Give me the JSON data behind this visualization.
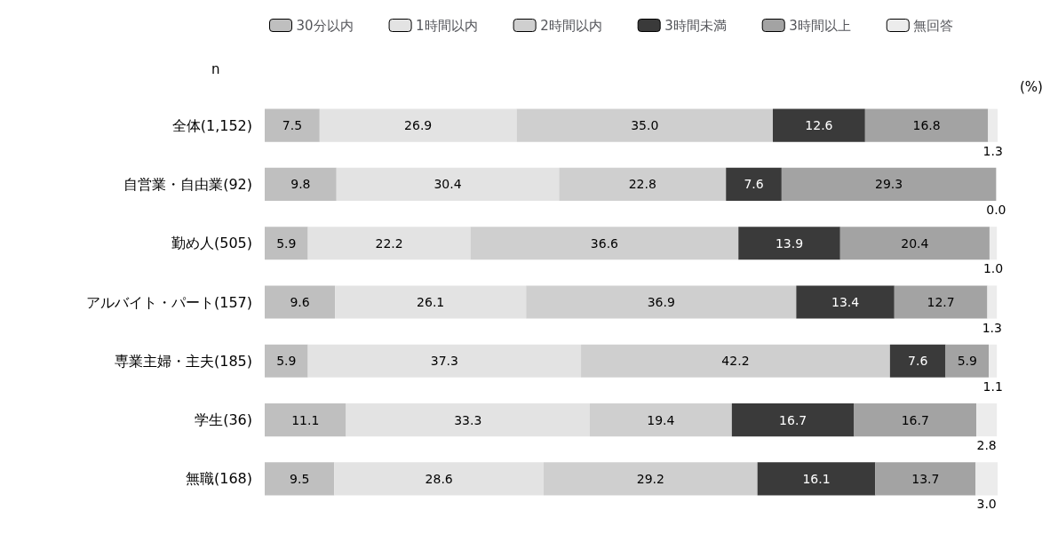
{
  "chart_data": {
    "type": "bar",
    "orientation": "horizontal",
    "stacked": true,
    "data_labels": true,
    "legend": "top",
    "categories": [
      "全体(1,152)",
      "自営業・自由業(92)",
      "勤め人(505)",
      "アルバイト・パート(157)",
      "専業主婦・主夫(185)",
      "学生(36)",
      "無職(168)"
    ],
    "series": [
      {
        "name": "30分以内",
        "color": "#bfbfbf",
        "values": [
          7.5,
          9.8,
          5.9,
          9.6,
          5.9,
          11.1,
          9.5
        ],
        "value_labels": [
          "7.5",
          "9.8",
          "5.9",
          "9.6",
          "5.9",
          "11.1",
          "9.5"
        ]
      },
      {
        "name": "1時間以内",
        "color": "#e3e3e3",
        "values": [
          26.9,
          30.4,
          22.2,
          26.1,
          37.3,
          33.3,
          28.6
        ],
        "value_labels": [
          "26.9",
          "30.4",
          "22.2",
          "26.1",
          "37.3",
          "33.3",
          "28.6"
        ]
      },
      {
        "name": "2時間以内",
        "color": "#cfcfcf",
        "values": [
          35.0,
          22.8,
          36.6,
          36.9,
          42.2,
          19.4,
          29.2
        ],
        "value_labels": [
          "35.0",
          "22.8",
          "36.6",
          "36.9",
          "42.2",
          "19.4",
          "29.2"
        ]
      },
      {
        "name": "3時間未満",
        "color": "#3a3a3a",
        "values": [
          12.6,
          7.6,
          13.9,
          13.4,
          7.6,
          16.7,
          16.1
        ],
        "value_labels": [
          "12.6",
          "7.6",
          "13.9",
          "13.4",
          "7.6",
          "16.7",
          "16.1"
        ]
      },
      {
        "name": "3時間以上",
        "color": "#a3a3a3",
        "values": [
          16.8,
          29.3,
          20.4,
          12.7,
          5.9,
          16.7,
          13.7
        ],
        "value_labels": [
          "16.8",
          "29.3",
          "20.4",
          "12.7",
          "5.9",
          "16.7",
          "13.7"
        ]
      },
      {
        "name": "無回答",
        "color": "#ececec",
        "values": [
          1.3,
          0.0,
          1.0,
          1.3,
          1.1,
          2.8,
          3.0
        ],
        "value_labels": [
          "1.3",
          "0.0",
          "1.0",
          "1.3",
          "1.1",
          "2.8",
          "3.0"
        ]
      }
    ],
    "annotations": [
      "n",
      "(%)"
    ]
  }
}
